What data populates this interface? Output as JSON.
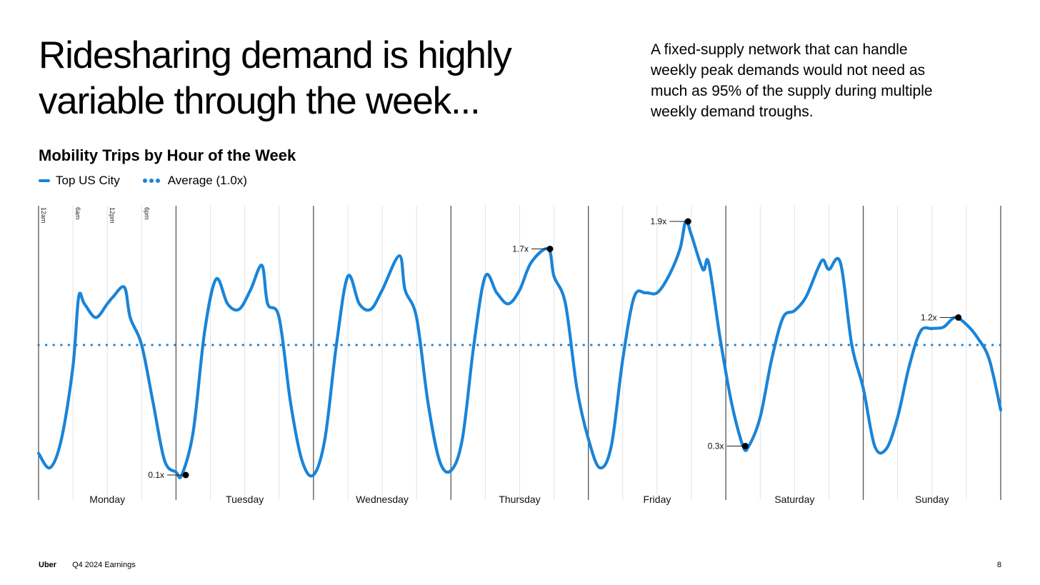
{
  "headline": {
    "line1": "Ridesharing demand is highly",
    "line2": "variable through the week..."
  },
  "subcopy": {
    "line1": "A fixed-supply network that can handle",
    "line2": "weekly peak demands would not need as",
    "line3": "much as 95% of the supply during multiple",
    "line4": "weekly demand troughs."
  },
  "chart_data": {
    "type": "line",
    "title": "Mobility Trips by Hour of the Week",
    "xlabel": "",
    "ylabel": "",
    "days": [
      "Monday",
      "Tuesday",
      "Wednesday",
      "Thursday",
      "Friday",
      "Saturday",
      "Sunday"
    ],
    "hour_ticks": [
      "12am",
      "6am",
      "12pm",
      "6pm"
    ],
    "xlim": [
      0,
      168
    ],
    "ylim": [
      0.0,
      2.0
    ],
    "grid": true,
    "legend_position": "top-left",
    "series": [
      {
        "name": "Top US City",
        "color": "#1a84d8",
        "points": [
          [
            0,
            0.25
          ],
          [
            2,
            0.15
          ],
          [
            4,
            0.35
          ],
          [
            6,
            0.85
          ],
          [
            7,
            1.35
          ],
          [
            8,
            1.3
          ],
          [
            10,
            1.2
          ],
          [
            12,
            1.3
          ],
          [
            13,
            1.35
          ],
          [
            15,
            1.42
          ],
          [
            16,
            1.2
          ],
          [
            18,
            1.0
          ],
          [
            20,
            0.6
          ],
          [
            22,
            0.2
          ],
          [
            24,
            0.12
          ],
          [
            25,
            0.1
          ],
          [
            27,
            0.4
          ],
          [
            29,
            1.1
          ],
          [
            31,
            1.48
          ],
          [
            33,
            1.3
          ],
          [
            35,
            1.26
          ],
          [
            37,
            1.4
          ],
          [
            39,
            1.58
          ],
          [
            40,
            1.3
          ],
          [
            42,
            1.2
          ],
          [
            44,
            0.6
          ],
          [
            46,
            0.2
          ],
          [
            48,
            0.1
          ],
          [
            50,
            0.35
          ],
          [
            52,
            1.0
          ],
          [
            54,
            1.5
          ],
          [
            56,
            1.3
          ],
          [
            58,
            1.26
          ],
          [
            60,
            1.4
          ],
          [
            63,
            1.65
          ],
          [
            64,
            1.4
          ],
          [
            66,
            1.2
          ],
          [
            68,
            0.6
          ],
          [
            70,
            0.2
          ],
          [
            72,
            0.13
          ],
          [
            74,
            0.35
          ],
          [
            76,
            1.0
          ],
          [
            78,
            1.5
          ],
          [
            80,
            1.38
          ],
          [
            82,
            1.3
          ],
          [
            84,
            1.4
          ],
          [
            86,
            1.6
          ],
          [
            89,
            1.7
          ],
          [
            90,
            1.5
          ],
          [
            92,
            1.3
          ],
          [
            94,
            0.7
          ],
          [
            96,
            0.35
          ],
          [
            98,
            0.15
          ],
          [
            100,
            0.3
          ],
          [
            102,
            0.9
          ],
          [
            104,
            1.35
          ],
          [
            106,
            1.38
          ],
          [
            108,
            1.38
          ],
          [
            110,
            1.5
          ],
          [
            112,
            1.7
          ],
          [
            113,
            1.9
          ],
          [
            114,
            1.8
          ],
          [
            116,
            1.55
          ],
          [
            117,
            1.6
          ],
          [
            119,
            1.05
          ],
          [
            121,
            0.6
          ],
          [
            123,
            0.3
          ],
          [
            124,
            0.3
          ],
          [
            126,
            0.5
          ],
          [
            128,
            0.9
          ],
          [
            130,
            1.2
          ],
          [
            132,
            1.25
          ],
          [
            134,
            1.35
          ],
          [
            136,
            1.55
          ],
          [
            137,
            1.62
          ],
          [
            138,
            1.55
          ],
          [
            140,
            1.6
          ],
          [
            142,
            1.0
          ],
          [
            144,
            0.7
          ],
          [
            146,
            0.3
          ],
          [
            148,
            0.28
          ],
          [
            150,
            0.5
          ],
          [
            152,
            0.85
          ],
          [
            154,
            1.1
          ],
          [
            156,
            1.12
          ],
          [
            158,
            1.13
          ],
          [
            160,
            1.2
          ],
          [
            162,
            1.15
          ],
          [
            164,
            1.05
          ],
          [
            166,
            0.9
          ],
          [
            168,
            0.55
          ]
        ]
      },
      {
        "name": "Average (1.0x)",
        "color": "#1a84d8",
        "value": 1.0
      }
    ],
    "annotations": [
      {
        "label": "0.1x",
        "x": 25.7,
        "y": 0.1
      },
      {
        "label": "1.7x",
        "x": 89.3,
        "y": 1.7
      },
      {
        "label": "1.9x",
        "x": 113.4,
        "y": 1.9
      },
      {
        "label": "0.3x",
        "x": 123.4,
        "y": 0.3
      },
      {
        "label": "1.2x",
        "x": 160.6,
        "y": 1.2
      }
    ]
  },
  "footer": {
    "brand": "Uber",
    "report": "Q4 2024 Earnings",
    "page": "8"
  }
}
